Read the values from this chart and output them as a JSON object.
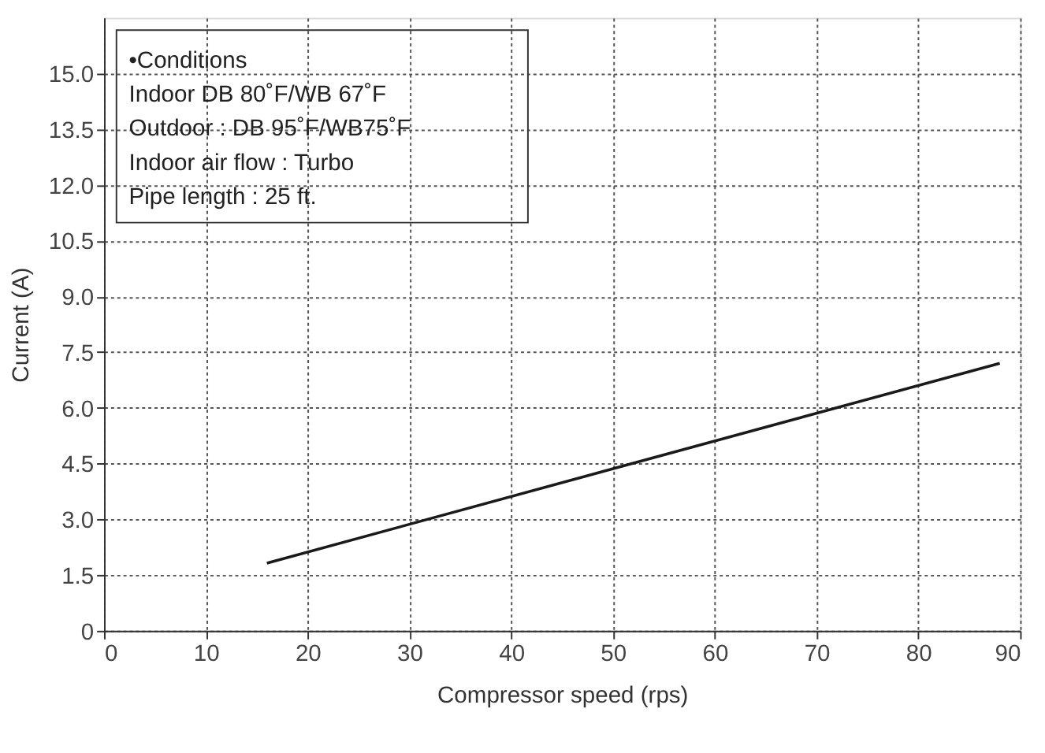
{
  "chart_data": {
    "type": "line",
    "xlabel": "Compressor speed (rps)",
    "ylabel": "Current (A)",
    "x": [
      16,
      88
    ],
    "series": [
      {
        "color": "#1a1a1a",
        "values": [
          1.82,
          7.2
        ]
      }
    ],
    "xlim": [
      0,
      90
    ],
    "xticks": [
      0,
      10,
      20,
      30,
      40,
      50,
      60,
      70,
      80,
      90
    ],
    "ylim": [
      0,
      16.5
    ],
    "yticks": [
      {
        "value": 0,
        "label": "0"
      },
      1.5,
      {
        "value": 3,
        "label": "3.0"
      },
      4.5,
      {
        "value": 6,
        "label": "6.0"
      },
      7.5,
      {
        "value": 9,
        "label": "9.0"
      },
      10.5,
      {
        "value": 12,
        "label": "12.0"
      },
      13.5,
      {
        "value": 15,
        "label": "15.0"
      }
    ],
    "grid": true,
    "line_style": "solid",
    "marker": "none",
    "annotations": [
      "•Conditions",
      "Indoor DB 80˚F/WB 67˚F",
      "Outdoor : DB 95˚F/WB75˚F",
      "Indoor air flow : Turbo",
      "Pipe length : 25 ft."
    ]
  }
}
